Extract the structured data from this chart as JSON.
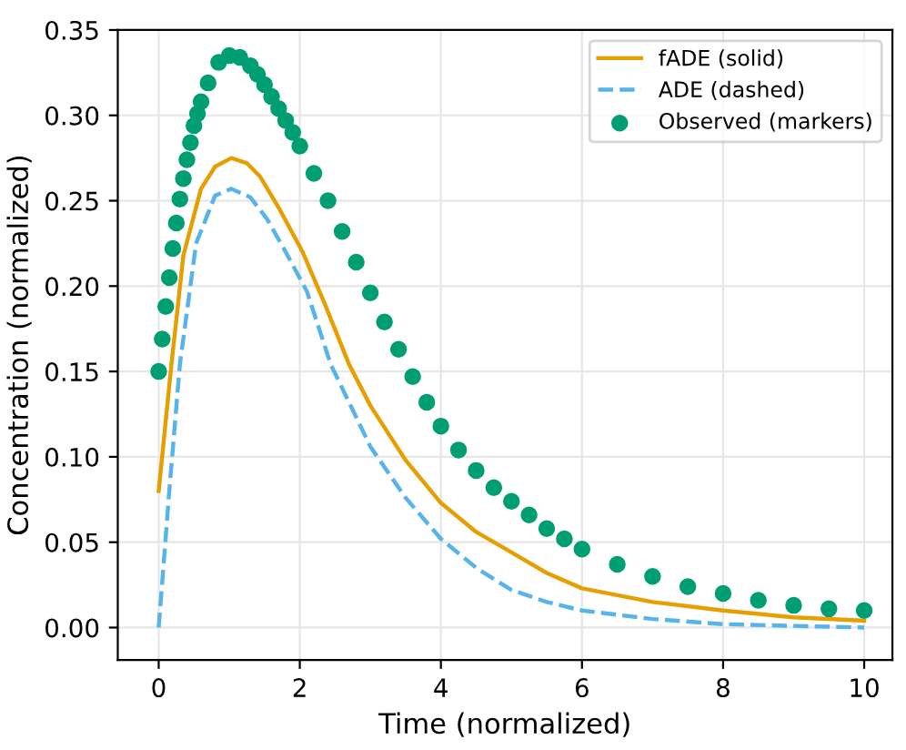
{
  "chart_data": {
    "type": "line",
    "xlabel": "Time (normalized)",
    "ylabel": "Concentration (normalized)",
    "xlim": [
      -0.58,
      10.4
    ],
    "ylim": [
      -0.019,
      0.35
    ],
    "xticks": [
      0,
      2,
      4,
      6,
      8,
      10
    ],
    "yticks": [
      {
        "value": 0,
        "label": "0.00"
      },
      {
        "value": 0.05,
        "label": "0.05"
      },
      {
        "value": 0.1,
        "label": "0.10"
      },
      {
        "value": 0.15,
        "label": "0.15"
      },
      {
        "value": 0.2,
        "label": "0.20"
      },
      {
        "value": 0.25,
        "label": "0.25"
      },
      {
        "value": 0.3,
        "label": "0.30"
      },
      {
        "value": 0.35,
        "label": "0.35"
      }
    ],
    "grid": true,
    "legend": "top right",
    "series": [
      {
        "name": "fADE (solid)",
        "line_style": "solid",
        "color": "#e69f00",
        "x": [
          0,
          0.18,
          0.35,
          0.6,
          0.8,
          1.03,
          1.25,
          1.44,
          1.7,
          2.04,
          2.35,
          2.7,
          3.0,
          3.5,
          4.0,
          4.5,
          5.0,
          5.5,
          6.0,
          7.0,
          8.0,
          9.0,
          10.0
        ],
        "values": [
          0.08,
          0.154,
          0.218,
          0.257,
          0.27,
          0.275,
          0.272,
          0.264,
          0.246,
          0.22,
          0.19,
          0.154,
          0.13,
          0.098,
          0.073,
          0.056,
          0.044,
          0.032,
          0.023,
          0.015,
          0.01,
          0.006,
          0.004
        ]
      },
      {
        "name": "ADE (dashed)",
        "line_style": "dashed",
        "color": "#56b4e9",
        "x": [
          0,
          0.15,
          0.3,
          0.53,
          0.8,
          1.03,
          1.3,
          1.54,
          1.8,
          2.1,
          2.44,
          3.0,
          3.5,
          4.0,
          4.5,
          5.0,
          5.5,
          6.0,
          7.0,
          8.0,
          9.0,
          10.0
        ],
        "values": [
          0,
          0.08,
          0.154,
          0.225,
          0.253,
          0.257,
          0.252,
          0.239,
          0.22,
          0.197,
          0.154,
          0.106,
          0.076,
          0.052,
          0.035,
          0.022,
          0.015,
          0.01,
          0.005,
          0.002,
          0.001,
          0
        ]
      },
      {
        "name": "Observed (markers)",
        "type": "scatter",
        "marker": "circle",
        "color": "#009e73",
        "x": [
          0,
          0.05,
          0.1,
          0.15,
          0.2,
          0.25,
          0.3,
          0.35,
          0.4,
          0.45,
          0.5,
          0.55,
          0.6,
          0.7,
          0.85,
          1.0,
          1.15,
          1.3,
          1.4,
          1.5,
          1.6,
          1.7,
          1.8,
          1.9,
          2.0,
          2.2,
          2.4,
          2.6,
          2.8,
          3.0,
          3.2,
          3.4,
          3.6,
          3.8,
          4.0,
          4.25,
          4.5,
          4.75,
          5.0,
          5.25,
          5.5,
          5.75,
          6.0,
          6.5,
          7.0,
          7.5,
          8.0,
          8.5,
          9.0,
          9.5,
          10.0
        ],
        "values": [
          0.15,
          0.169,
          0.188,
          0.205,
          0.222,
          0.237,
          0.251,
          0.263,
          0.274,
          0.284,
          0.294,
          0.301,
          0.308,
          0.319,
          0.331,
          0.335,
          0.334,
          0.329,
          0.324,
          0.318,
          0.311,
          0.304,
          0.297,
          0.29,
          0.282,
          0.266,
          0.25,
          0.232,
          0.214,
          0.196,
          0.179,
          0.163,
          0.147,
          0.132,
          0.118,
          0.104,
          0.092,
          0.082,
          0.074,
          0.066,
          0.058,
          0.052,
          0.046,
          0.037,
          0.03,
          0.024,
          0.02,
          0.016,
          0.013,
          0.011,
          0.01
        ]
      }
    ]
  }
}
